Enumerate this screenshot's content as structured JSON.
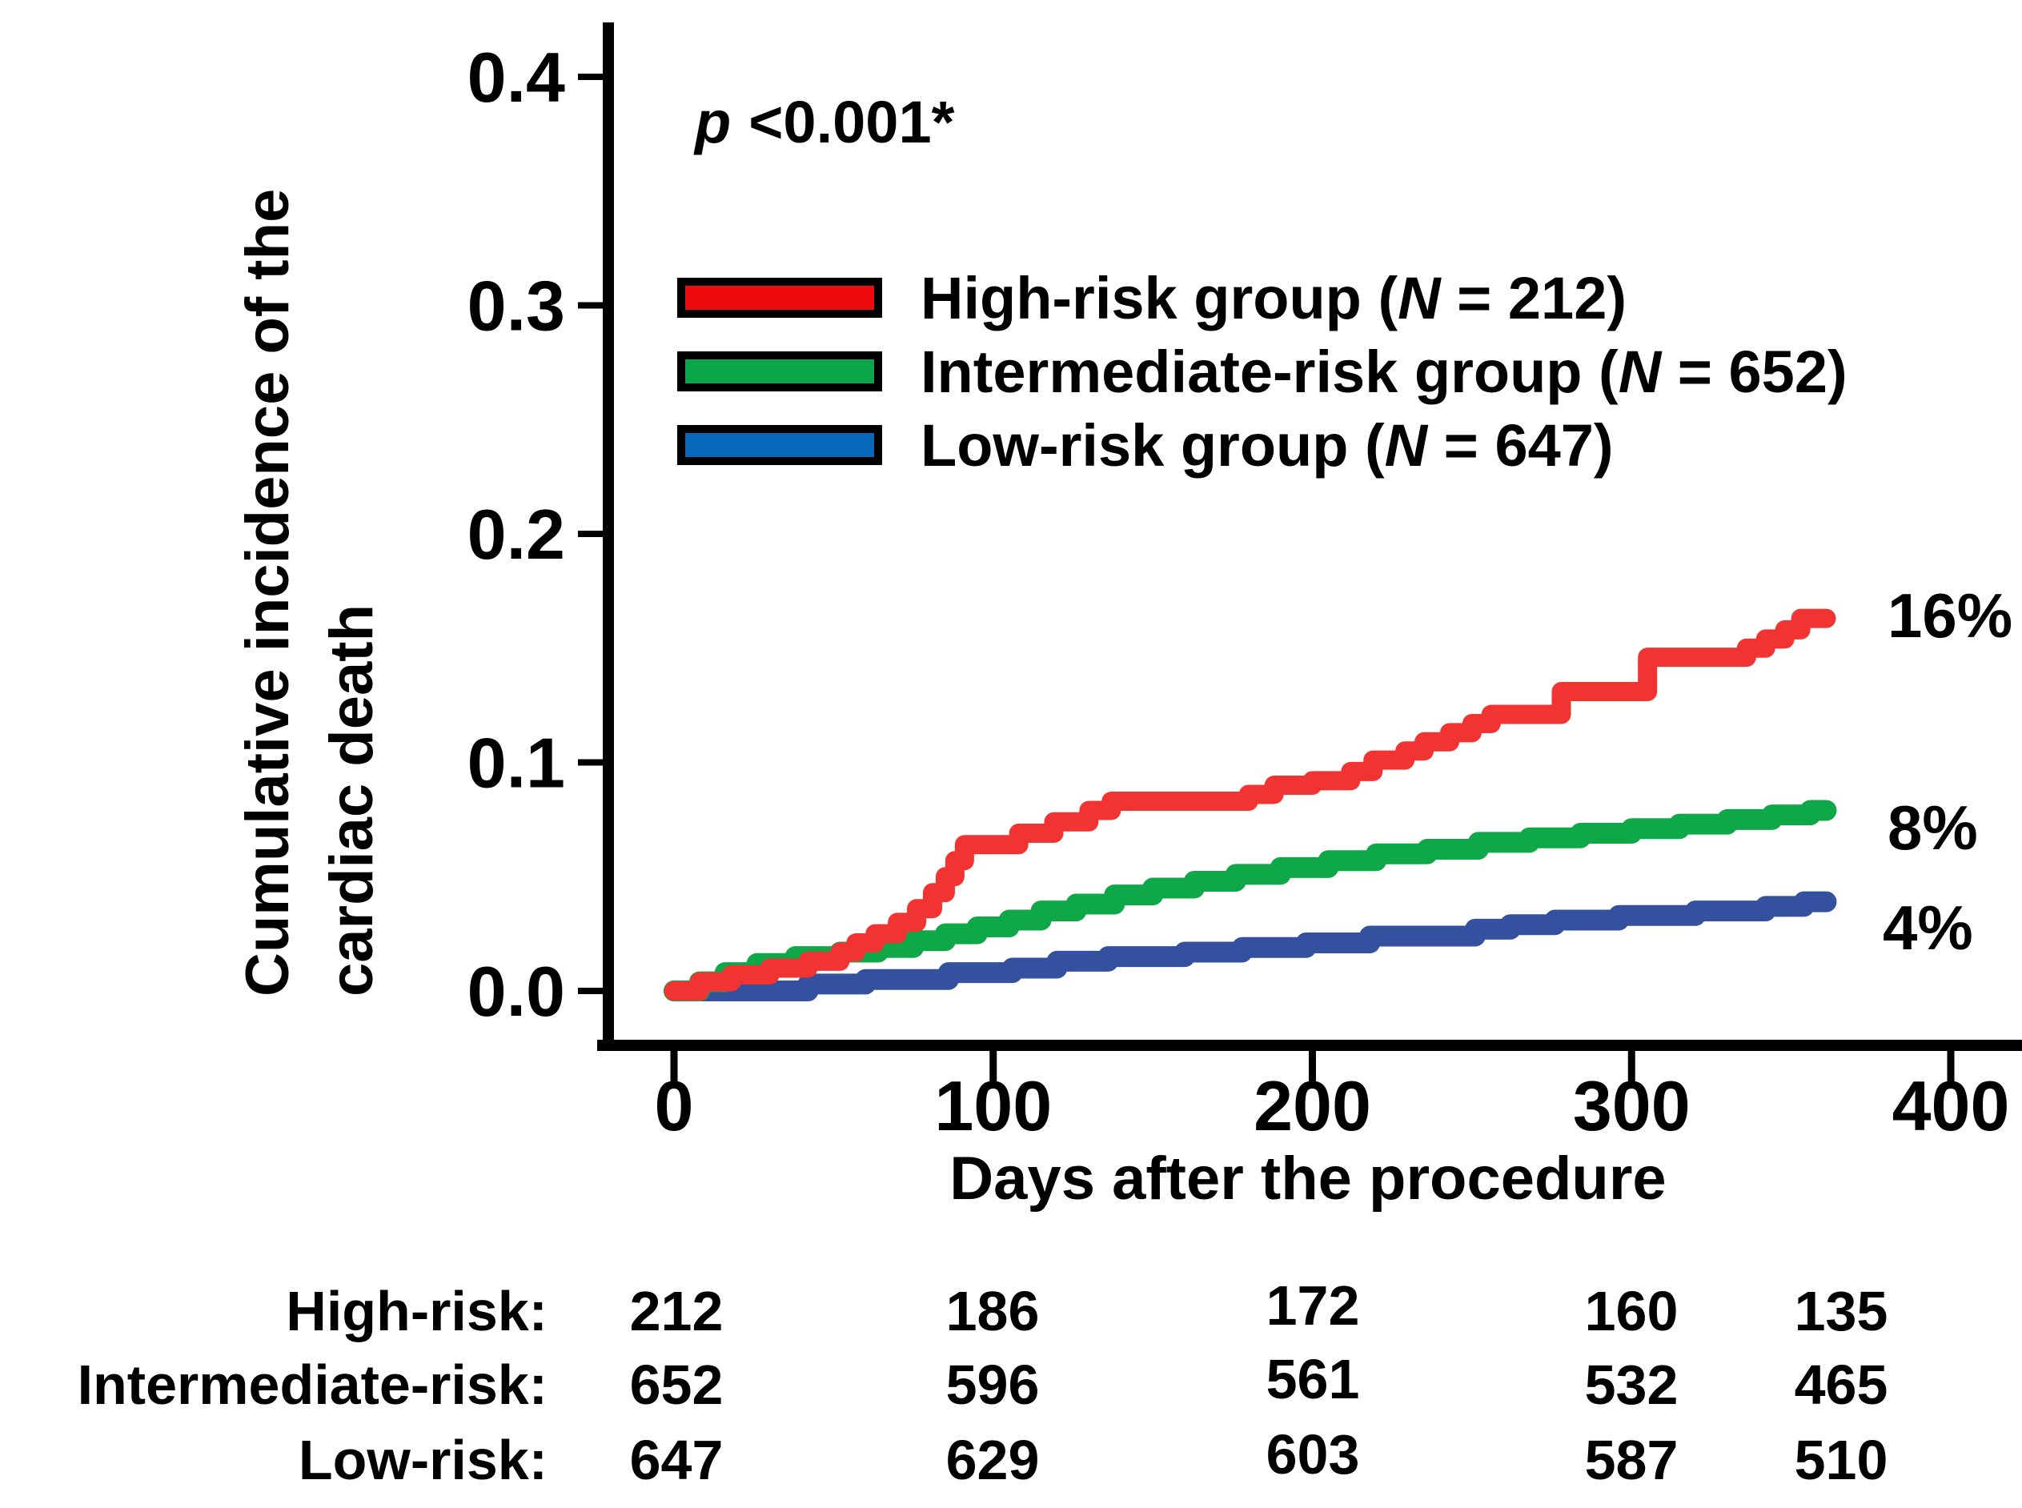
{
  "figure": {
    "p_annotation": {
      "symbol": "p",
      "text": "<0.001*"
    },
    "y_axis": {
      "title_line1": "Cumulative incidence of the",
      "title_line2": "cardiac death",
      "tick_labels": [
        "0.0",
        "0.1",
        "0.2",
        "0.3",
        "0.4"
      ],
      "tick_values": [
        0,
        0.1,
        0.2,
        0.3,
        0.4
      ]
    },
    "x_axis": {
      "title": "Days after the procedure",
      "tick_labels": [
        "0",
        "100",
        "200",
        "300",
        "400"
      ],
      "tick_values": [
        0,
        100,
        200,
        300,
        400
      ]
    },
    "legend": [
      {
        "pre": "High-risk group (",
        "n": "N",
        "post": " = 212)",
        "color": "#ee0b0e"
      },
      {
        "pre": "Intermediate-risk group (",
        "n": "N",
        "post": " = 652)",
        "color": "#0ba54a"
      },
      {
        "pre": "Low-risk group (",
        "n": "N",
        "post": " = 647)",
        "color": "#0968bb"
      }
    ]
  },
  "chart_data": {
    "type": "line",
    "step": true,
    "title": "Cumulative incidence of cardiac death by risk group",
    "xlabel": "Days after the procedure",
    "ylabel": "Cumulative incidence of the cardiac death",
    "annotation": "p <0.001*",
    "xlim": [
      0,
      422
    ],
    "ylim": [
      0,
      0.425
    ],
    "xticks": [
      0,
      100,
      200,
      300,
      400
    ],
    "yticks": [
      0,
      0.1,
      0.2,
      0.3,
      0.4
    ],
    "grid": false,
    "legend_position": "upper-left-inside",
    "series": [
      {
        "name": "High-risk group",
        "n": 212,
        "color": "#f13331",
        "end_label": "16%",
        "final_value": 0.163,
        "steps": [
          [
            0,
            0
          ],
          [
            8,
            0.004
          ],
          [
            18,
            0.007
          ],
          [
            30,
            0.01
          ],
          [
            42,
            0.013
          ],
          [
            52,
            0.017
          ],
          [
            57,
            0.021
          ],
          [
            63,
            0.025
          ],
          [
            70,
            0.03
          ],
          [
            76,
            0.036
          ],
          [
            81,
            0.043
          ],
          [
            85,
            0.05
          ],
          [
            88,
            0.057
          ],
          [
            91,
            0.064
          ],
          [
            108,
            0.069
          ],
          [
            119,
            0.074
          ],
          [
            130,
            0.079
          ],
          [
            137,
            0.083
          ],
          [
            180,
            0.086
          ],
          [
            188,
            0.09
          ],
          [
            200,
            0.092
          ],
          [
            212,
            0.096
          ],
          [
            219,
            0.101
          ],
          [
            229,
            0.105
          ],
          [
            235,
            0.109
          ],
          [
            243,
            0.113
          ],
          [
            250,
            0.117
          ],
          [
            256,
            0.121
          ],
          [
            278,
            0.131
          ],
          [
            305,
            0.146
          ],
          [
            336,
            0.15
          ],
          [
            342,
            0.154
          ],
          [
            348,
            0.158
          ],
          [
            353,
            0.163
          ],
          [
            361,
            0.163
          ]
        ]
      },
      {
        "name": "Intermediate-risk group",
        "n": 652,
        "color": "#0fa848",
        "end_label": "8%",
        "final_value": 0.079,
        "steps": [
          [
            0,
            0
          ],
          [
            8,
            0.004
          ],
          [
            16,
            0.008
          ],
          [
            26,
            0.012
          ],
          [
            38,
            0.015
          ],
          [
            52,
            0.017
          ],
          [
            64,
            0.019
          ],
          [
            75,
            0.022
          ],
          [
            85,
            0.025
          ],
          [
            95,
            0.028
          ],
          [
            105,
            0.031
          ],
          [
            115,
            0.035
          ],
          [
            126,
            0.038
          ],
          [
            138,
            0.042
          ],
          [
            150,
            0.045
          ],
          [
            163,
            0.048
          ],
          [
            176,
            0.051
          ],
          [
            190,
            0.054
          ],
          [
            205,
            0.057
          ],
          [
            220,
            0.06
          ],
          [
            236,
            0.062
          ],
          [
            252,
            0.065
          ],
          [
            268,
            0.067
          ],
          [
            284,
            0.069
          ],
          [
            300,
            0.071
          ],
          [
            315,
            0.073
          ],
          [
            330,
            0.075
          ],
          [
            344,
            0.077
          ],
          [
            356,
            0.079
          ],
          [
            361,
            0.079
          ]
        ]
      },
      {
        "name": "Low-risk group",
        "n": 647,
        "color": "#33519e",
        "end_label": "4%",
        "final_value": 0.039,
        "steps": [
          [
            0,
            0
          ],
          [
            42,
            0.003
          ],
          [
            60,
            0.005
          ],
          [
            86,
            0.008
          ],
          [
            106,
            0.01
          ],
          [
            120,
            0.013
          ],
          [
            136,
            0.015
          ],
          [
            160,
            0.017
          ],
          [
            178,
            0.019
          ],
          [
            198,
            0.021
          ],
          [
            218,
            0.024
          ],
          [
            251,
            0.027
          ],
          [
            262,
            0.029
          ],
          [
            276,
            0.031
          ],
          [
            296,
            0.033
          ],
          [
            320,
            0.035
          ],
          [
            342,
            0.037
          ],
          [
            354,
            0.039
          ],
          [
            361,
            0.039
          ]
        ]
      }
    ],
    "risk_table_times": [
      0,
      100,
      200,
      300,
      365
    ]
  },
  "risk_table": {
    "rows": [
      {
        "label": "High-risk:",
        "values": [
          "212",
          "186",
          "172",
          "160",
          "135"
        ]
      },
      {
        "label": "Intermediate-risk:",
        "values": [
          "652",
          "596",
          "561",
          "532",
          "465"
        ]
      },
      {
        "label": "Low-risk:",
        "values": [
          "647",
          "629",
          "603",
          "587",
          "510"
        ]
      }
    ]
  }
}
